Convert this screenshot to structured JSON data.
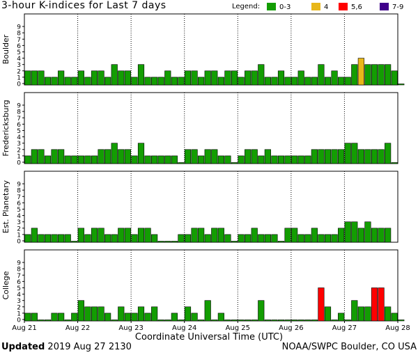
{
  "title": "3-hour K-indices for Last 7 days",
  "legend": {
    "label": "Legend:",
    "entries": [
      {
        "label": "0-3",
        "color": "#139d02"
      },
      {
        "label": "4",
        "color": "#e8b71a"
      },
      {
        "label": "5,6",
        "color": "#ff0000"
      },
      {
        "label": "7-9",
        "color": "#3f008a"
      }
    ]
  },
  "footer": {
    "updated_label": "Updated",
    "updated_value": "2019 Aug 27 2130",
    "source": "NOAA/SWPC Boulder, CO USA"
  },
  "chart_data": {
    "type": "bar",
    "xlabel": "Coordinate Universal Time (UTC)",
    "x_tick_labels": [
      "Aug 21",
      "Aug 22",
      "Aug 23",
      "Aug 24",
      "Aug 25",
      "Aug 26",
      "Aug 27",
      "Aug 28"
    ],
    "ylim": [
      0,
      9
    ],
    "y_ticks": [
      "0",
      "1",
      "2",
      "3",
      "4",
      "5",
      "6",
      "7",
      "8",
      "9"
    ],
    "grid": "dotted vertical at day boundaries",
    "panels": [
      {
        "name": "Boulder",
        "values": [
          2,
          2,
          2,
          1,
          1,
          2,
          1,
          1,
          2,
          1,
          2,
          2,
          1,
          3,
          2,
          2,
          1,
          3,
          1,
          1,
          1,
          2,
          1,
          1,
          2,
          2,
          1,
          2,
          2,
          1,
          2,
          2,
          1,
          2,
          2,
          3,
          1,
          1,
          2,
          1,
          1,
          2,
          1,
          1,
          3,
          1,
          2,
          1,
          1,
          3,
          4,
          3,
          3,
          3,
          3,
          2,
          0
        ]
      },
      {
        "name": "Fredericksburg",
        "values": [
          1,
          2,
          2,
          1,
          2,
          2,
          1,
          1,
          1,
          1,
          1,
          2,
          2,
          3,
          2,
          2,
          1,
          3,
          1,
          1,
          1,
          1,
          1,
          0,
          2,
          2,
          1,
          2,
          2,
          1,
          1,
          0,
          1,
          2,
          2,
          1,
          2,
          1,
          1,
          1,
          1,
          1,
          1,
          2,
          2,
          2,
          2,
          2,
          3,
          3,
          2,
          2,
          2,
          2,
          3,
          0
        ]
      },
      {
        "name": "Est. Planetary",
        "values": [
          1,
          2,
          1,
          1,
          1,
          1,
          1,
          0,
          2,
          1,
          2,
          2,
          1,
          1,
          2,
          2,
          1,
          2,
          2,
          1,
          0,
          0,
          0,
          1,
          1,
          2,
          2,
          1,
          2,
          2,
          1,
          0,
          1,
          1,
          2,
          1,
          1,
          1,
          0,
          2,
          2,
          1,
          1,
          2,
          1,
          1,
          1,
          2,
          3,
          3,
          2,
          3,
          2,
          2,
          2
        ]
      },
      {
        "name": "College",
        "values": [
          1,
          1,
          0,
          0,
          1,
          1,
          0,
          1,
          3,
          2,
          2,
          2,
          1,
          0,
          2,
          1,
          1,
          2,
          1,
          2,
          0,
          0,
          1,
          0,
          2,
          1,
          0,
          3,
          0,
          1,
          0,
          0,
          0,
          0,
          0,
          3,
          0,
          0,
          0,
          0,
          0,
          0,
          0,
          0,
          5,
          2,
          0,
          1,
          0,
          3,
          2,
          2,
          5,
          5,
          2,
          1,
          0
        ]
      }
    ]
  }
}
